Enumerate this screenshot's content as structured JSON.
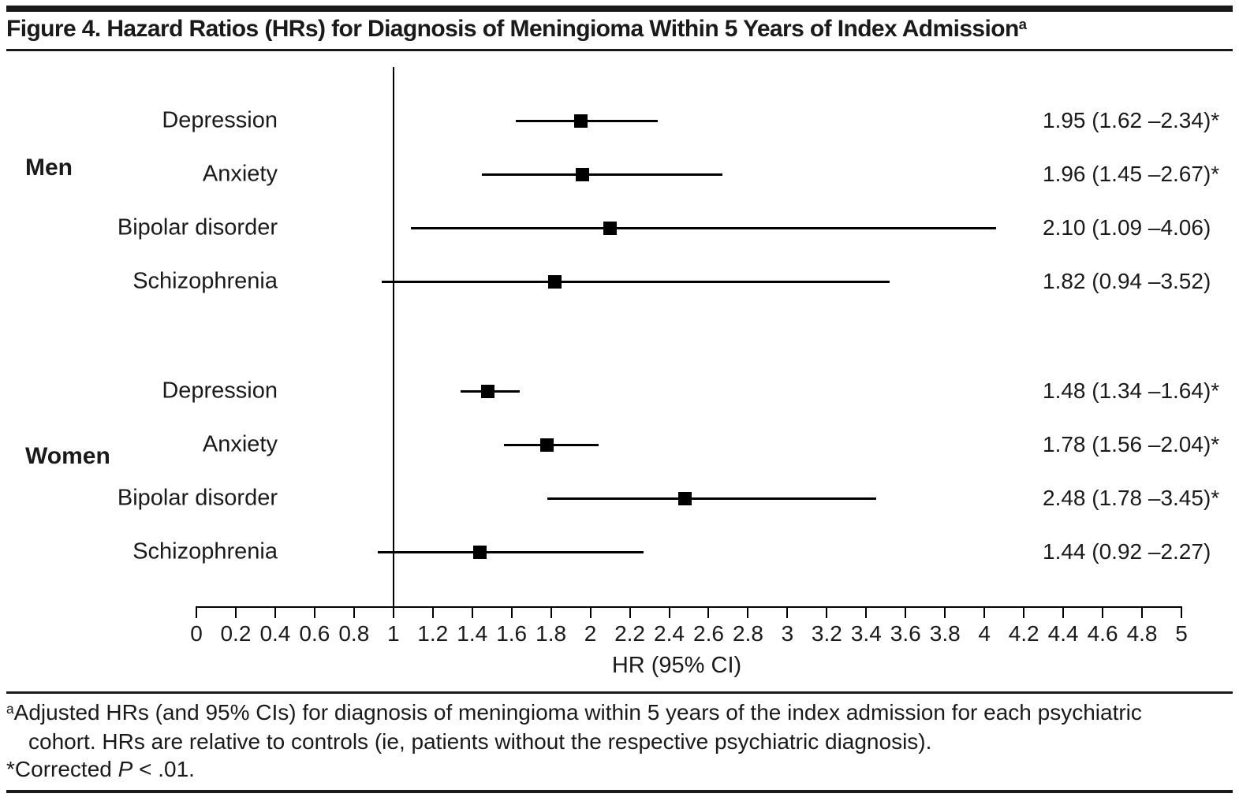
{
  "header": {
    "title": "Figure 4. Hazard Ratios (HRs) for Diagnosis of Meningioma Within 5 Years of Index Admission",
    "title_superscript": "a"
  },
  "chart_data": {
    "type": "forest",
    "xlabel": "HR (95% CI)",
    "xlim": [
      0,
      5
    ],
    "xtick_step": 0.2,
    "reference_line": 1,
    "grid": false,
    "groups": [
      {
        "name": "Men",
        "rows": [
          {
            "label": "Depression",
            "hr": 1.95,
            "ci_low": 1.62,
            "ci_high": 2.34,
            "significant": true,
            "value_text": "1.95 (1.62 –2.34)*"
          },
          {
            "label": "Anxiety",
            "hr": 1.96,
            "ci_low": 1.45,
            "ci_high": 2.67,
            "significant": true,
            "value_text": "1.96 (1.45 –2.67)*"
          },
          {
            "label": "Bipolar disorder",
            "hr": 2.1,
            "ci_low": 1.09,
            "ci_high": 4.06,
            "significant": false,
            "value_text": "2.10 (1.09 –4.06)"
          },
          {
            "label": "Schizophrenia",
            "hr": 1.82,
            "ci_low": 0.94,
            "ci_high": 3.52,
            "significant": false,
            "value_text": "1.82 (0.94 –3.52)"
          }
        ]
      },
      {
        "name": "Women",
        "rows": [
          {
            "label": "Depression",
            "hr": 1.48,
            "ci_low": 1.34,
            "ci_high": 1.64,
            "significant": true,
            "value_text": "1.48 (1.34 –1.64)*"
          },
          {
            "label": "Anxiety",
            "hr": 1.78,
            "ci_low": 1.56,
            "ci_high": 2.04,
            "significant": true,
            "value_text": "1.78 (1.56 –2.04)*"
          },
          {
            "label": "Bipolar disorder",
            "hr": 2.48,
            "ci_low": 1.78,
            "ci_high": 3.45,
            "significant": true,
            "value_text": "2.48 (1.78 –3.45)*"
          },
          {
            "label": "Schizophrenia",
            "hr": 1.44,
            "ci_low": 0.92,
            "ci_high": 2.27,
            "significant": false,
            "value_text": "1.44 (0.92 –2.27)"
          }
        ]
      }
    ]
  },
  "footnotes": {
    "marker": "a",
    "line1": "Adjusted HRs (and 95% CIs) for diagnosis of meningioma within 5 years of the index admission for each psychiatric",
    "line2": "cohort. HRs are relative to controls (ie, patients without the respective psychiatric diagnosis).",
    "star_prefix": "*Corrected ",
    "star_italic": "P",
    "star_suffix": " < .01."
  },
  "colors": {
    "ink": "#1a1a1a",
    "marker": "#000000"
  }
}
